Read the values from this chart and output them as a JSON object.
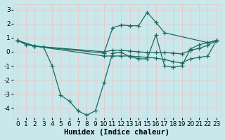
{
  "background_color": "#c8e8ec",
  "grid_color": "#e8c8c8",
  "line_color": "#1a6b62",
  "xlabel": "Humidex (Indice chaleur)",
  "xlabel_fontsize": 7.5,
  "tick_fontsize": 6.5,
  "ylim": [
    -4.7,
    3.4
  ],
  "xlim": [
    -0.5,
    23.5
  ],
  "yticks": [
    -4,
    -3,
    -2,
    -1,
    0,
    1,
    2,
    3
  ],
  "xticks": [
    0,
    1,
    2,
    3,
    4,
    5,
    6,
    7,
    8,
    9,
    10,
    11,
    12,
    13,
    14,
    15,
    16,
    17,
    18,
    19,
    20,
    21,
    22,
    23
  ],
  "lines": [
    {
      "x": [
        0,
        1,
        2,
        3,
        4,
        5,
        6,
        7,
        8,
        9,
        10,
        11,
        12,
        13,
        14,
        15,
        16,
        17,
        18,
        19,
        20,
        21,
        22,
        23
      ],
      "y": [
        0.8,
        0.5,
        0.4,
        0.35,
        -1.0,
        -3.1,
        -3.5,
        -4.2,
        -4.5,
        -4.2,
        -2.2,
        -0.1,
        -0.05,
        -0.35,
        -0.5,
        -0.5,
        1.2,
        -1.0,
        -1.1,
        -1.0,
        0.2,
        0.5,
        0.65,
        0.8
      ]
    },
    {
      "x": [
        0,
        2,
        10,
        11,
        12,
        13,
        14,
        15,
        16,
        17,
        22,
        23
      ],
      "y": [
        0.8,
        0.4,
        -0.1,
        1.7,
        1.9,
        1.85,
        1.85,
        2.8,
        2.1,
        1.35,
        0.65,
        0.8
      ]
    },
    {
      "x": [
        0,
        2,
        10,
        11,
        12,
        13,
        14,
        15,
        16,
        17,
        18,
        19,
        20,
        21,
        22,
        23
      ],
      "y": [
        0.8,
        0.4,
        0.0,
        0.1,
        0.1,
        0.05,
        0.0,
        -0.05,
        -0.05,
        -0.05,
        -0.1,
        -0.15,
        0.1,
        0.25,
        0.45,
        0.8
      ]
    },
    {
      "x": [
        0,
        2,
        10,
        11,
        12,
        13,
        14,
        15,
        16,
        17,
        18,
        19,
        20,
        21,
        22,
        23
      ],
      "y": [
        0.8,
        0.4,
        -0.3,
        -0.3,
        -0.3,
        -0.3,
        -0.35,
        -0.4,
        -0.45,
        -0.55,
        -0.7,
        -0.8,
        -0.5,
        -0.4,
        -0.3,
        0.8
      ]
    }
  ]
}
